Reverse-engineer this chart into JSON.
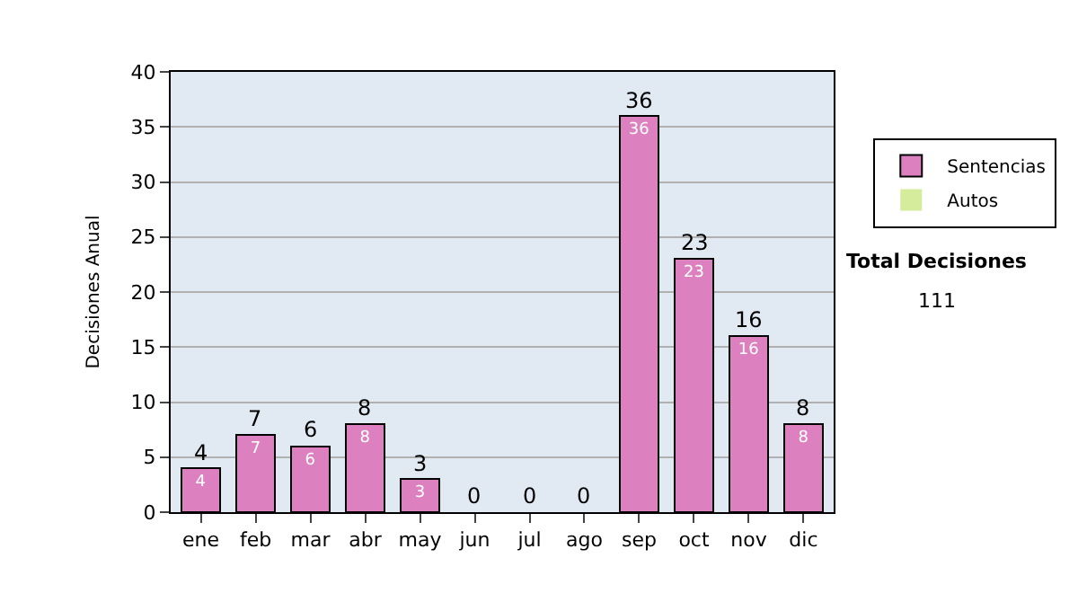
{
  "chart_data": {
    "type": "bar",
    "stacked": true,
    "ylabel": "Decisiones Anual",
    "categories": [
      "ene",
      "feb",
      "mar",
      "abr",
      "may",
      "jun",
      "jul",
      "ago",
      "sep",
      "oct",
      "nov",
      "dic"
    ],
    "series": [
      {
        "name": "Sentencias",
        "color": "#dd80c0",
        "values": [
          4,
          7,
          6,
          8,
          3,
          0,
          0,
          0,
          36,
          23,
          16,
          8
        ],
        "value_labels": [
          "4",
          "7",
          "6",
          "8",
          "3",
          null,
          null,
          null,
          "36",
          "23",
          "16",
          "8"
        ]
      },
      {
        "name": "Autos",
        "color": "#d4ec9c",
        "values": [
          0,
          0,
          0,
          0,
          0,
          0,
          0,
          0,
          0,
          0,
          0,
          0
        ]
      }
    ],
    "totals": [
      "4",
      "7",
      "6",
      "8",
      "3",
      "0",
      "0",
      "0",
      "36",
      "23",
      "16",
      "8"
    ],
    "ylim": [
      0,
      40
    ],
    "yticks": [
      0,
      5,
      10,
      15,
      20,
      25,
      30,
      35,
      40
    ],
    "grid": "y",
    "legend": "right",
    "annotations": [
      "Total Decisiones",
      "111"
    ]
  }
}
